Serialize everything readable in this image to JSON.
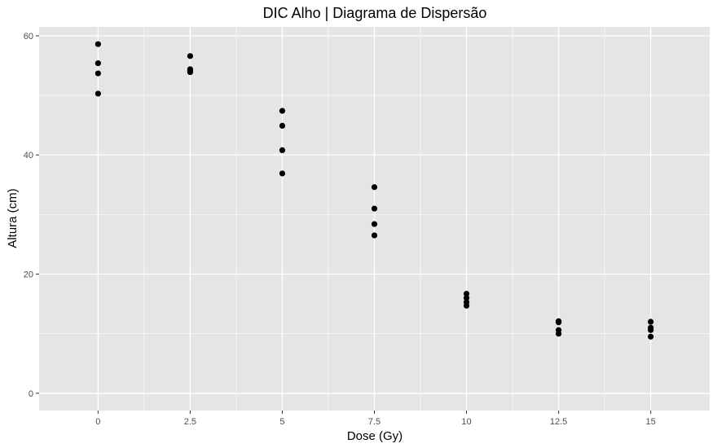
{
  "chart_data": {
    "type": "scatter",
    "title": "DIC Alho | Diagrama de Dispersão",
    "xlabel": "Dose (Gy)",
    "ylabel": "Altura (cm)",
    "xlim": [
      -1.6,
      16.6
    ],
    "ylim": [
      -2.9,
      61.5
    ],
    "x_ticks": [
      0,
      2.5,
      5,
      7.5,
      10,
      12.5,
      15
    ],
    "x_tick_labels": [
      "0",
      "2.5",
      "5",
      "7.5",
      "10",
      "12.5",
      "15"
    ],
    "y_ticks": [
      0,
      20,
      40,
      60
    ],
    "y_tick_labels": [
      "0",
      "20",
      "40",
      "60"
    ],
    "grid": true,
    "legend": "none",
    "panel_color": "#e5e5e5",
    "grid_color": "#ffffff",
    "point_color": "#000000",
    "points": [
      {
        "x": 0,
        "y": 58.6
      },
      {
        "x": 0,
        "y": 55.4
      },
      {
        "x": 0,
        "y": 53.7
      },
      {
        "x": 0,
        "y": 50.3
      },
      {
        "x": 2.5,
        "y": 56.6
      },
      {
        "x": 2.5,
        "y": 54.4
      },
      {
        "x": 2.5,
        "y": 54.1
      },
      {
        "x": 2.5,
        "y": 53.9
      },
      {
        "x": 5,
        "y": 47.4
      },
      {
        "x": 5,
        "y": 44.9
      },
      {
        "x": 5,
        "y": 40.8
      },
      {
        "x": 5,
        "y": 36.9
      },
      {
        "x": 7.5,
        "y": 34.6
      },
      {
        "x": 7.5,
        "y": 31.0
      },
      {
        "x": 7.5,
        "y": 28.4
      },
      {
        "x": 7.5,
        "y": 26.5
      },
      {
        "x": 10,
        "y": 16.7
      },
      {
        "x": 10,
        "y": 16.0
      },
      {
        "x": 10,
        "y": 15.3
      },
      {
        "x": 10,
        "y": 14.7
      },
      {
        "x": 12.5,
        "y": 12.1
      },
      {
        "x": 12.5,
        "y": 11.9
      },
      {
        "x": 12.5,
        "y": 10.6
      },
      {
        "x": 12.5,
        "y": 10.0
      },
      {
        "x": 15,
        "y": 12.0
      },
      {
        "x": 15,
        "y": 11.0
      },
      {
        "x": 15,
        "y": 10.6
      },
      {
        "x": 15,
        "y": 9.5
      }
    ]
  }
}
